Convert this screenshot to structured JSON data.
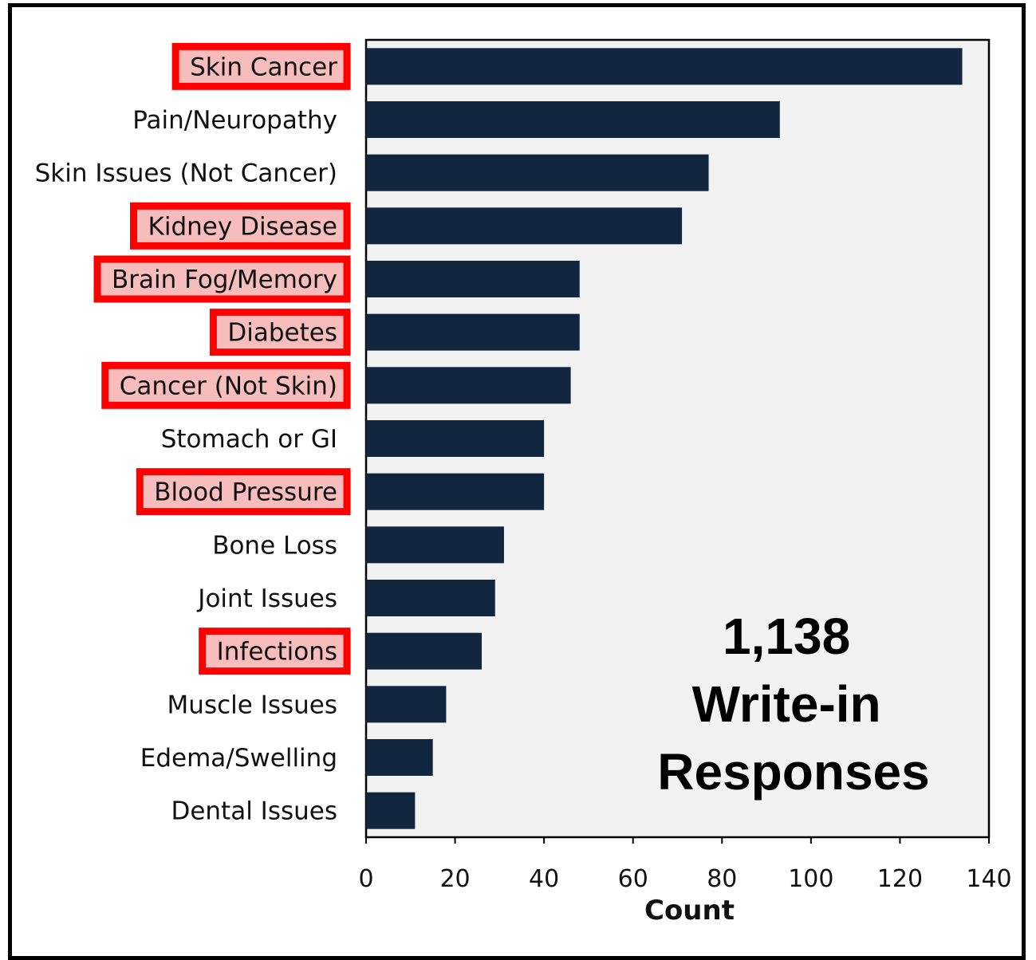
{
  "chart_data": {
    "type": "bar",
    "orientation": "horizontal",
    "categories": [
      "Skin Cancer",
      "Pain/Neuropathy",
      "Skin Issues (Not Cancer)",
      "Kidney Disease",
      "Brain Fog/Memory",
      "Diabetes",
      "Cancer (Not Skin)",
      "Stomach or GI",
      "Blood Pressure",
      "Bone Loss",
      "Joint Issues",
      "Infections",
      "Muscle Issues",
      "Edema/Swelling",
      "Dental Issues"
    ],
    "values": [
      134,
      93,
      77,
      71,
      48,
      48,
      46,
      40,
      40,
      31,
      29,
      26,
      18,
      15,
      11
    ],
    "highlighted": [
      "Skin Cancer",
      "Kidney Disease",
      "Brain Fog/Memory",
      "Diabetes",
      "Cancer (Not Skin)",
      "Blood Pressure",
      "Infections"
    ],
    "xlabel": "Count",
    "xlim": [
      0,
      140
    ],
    "xticks": [
      0,
      20,
      40,
      60,
      80,
      100,
      120,
      140
    ],
    "annotation": [
      "1,138",
      "Write-in",
      "Responses"
    ],
    "colors": {
      "bar": "#12263f",
      "plot_background": "#f2f2f2",
      "highlight_fill": "#f7bcbc",
      "highlight_border": "#ff0000"
    }
  }
}
